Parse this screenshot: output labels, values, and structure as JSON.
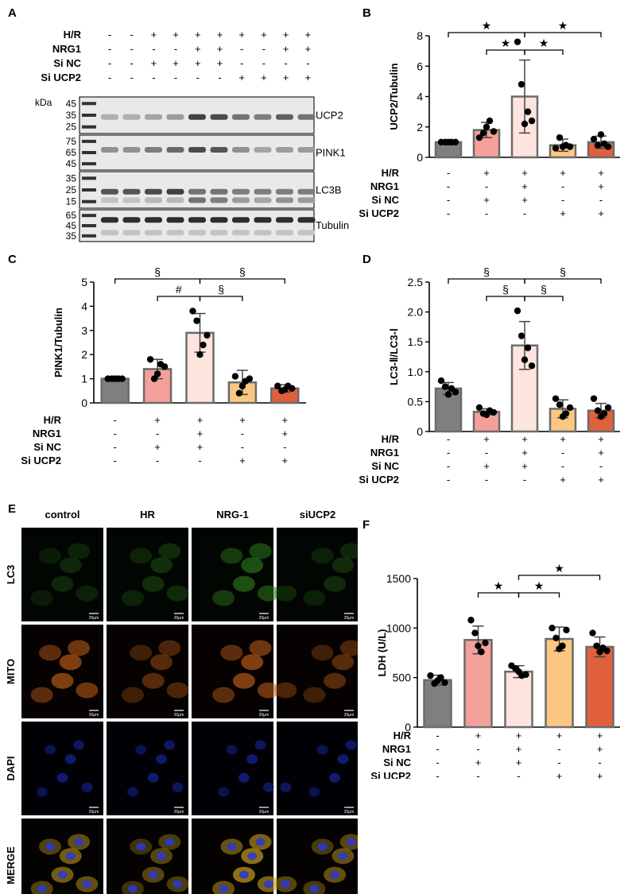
{
  "panel_labels": {
    "A": "A",
    "B": "B",
    "C": "C",
    "D": "D",
    "E": "E",
    "F": "F"
  },
  "conditions": [
    {
      "label": "H/R",
      "bar_values": [
        "-",
        "+",
        "+",
        "+",
        "+"
      ]
    },
    {
      "label": "NRG1",
      "bar_values": [
        "-",
        "-",
        "+",
        "-",
        "+"
      ]
    },
    {
      "label": "Si NC",
      "bar_values": [
        "-",
        "+",
        "+",
        "-",
        "-"
      ]
    },
    {
      "label": "Si UCP2",
      "bar_values": [
        "-",
        "-",
        "-",
        "+",
        "+"
      ]
    }
  ],
  "colors": {
    "bars": [
      "#7f7f7f",
      "#f4a09a",
      "#fde4dc",
      "#fbc782",
      "#e0603c"
    ],
    "bar_edge": "#6b6b6b"
  },
  "western_blot": {
    "lane_conditions": [
      {
        "label": "H/R",
        "lanes": [
          "-",
          "-",
          "+",
          "+",
          "+",
          "+",
          "+",
          "+",
          "+",
          "+"
        ]
      },
      {
        "label": "NRG1",
        "lanes": [
          "-",
          "-",
          "-",
          "-",
          "+",
          "+",
          "-",
          "-",
          "+",
          "+"
        ]
      },
      {
        "label": "Si NC",
        "lanes": [
          "-",
          "-",
          "+",
          "+",
          "+",
          "+",
          "-",
          "-",
          "-",
          "-"
        ]
      },
      {
        "label": "Si UCP2",
        "lanes": [
          "-",
          "-",
          "-",
          "-",
          "-",
          "-",
          "+",
          "+",
          "+",
          "+"
        ]
      }
    ],
    "kda_header": "kDa",
    "blots": [
      {
        "name": "UCP2",
        "markers": [
          "45",
          "35",
          "25"
        ]
      },
      {
        "name": "PINK1",
        "markers": [
          "75",
          "65",
          "45"
        ]
      },
      {
        "name": "LC3B",
        "markers": [
          "35",
          "25",
          "15"
        ]
      },
      {
        "name": "Tubulin",
        "markers": [
          "65",
          "45",
          "35"
        ]
      }
    ]
  },
  "microscopy": {
    "columns": [
      "control",
      "HR",
      "NRG-1",
      "siUCP2"
    ],
    "rows": [
      "LC3",
      "MITO",
      "DAPI",
      "MERGE"
    ],
    "scale_bar": "20μm"
  },
  "chart_data": [
    {
      "id": "B",
      "type": "bar",
      "ylabel": "UCP2/Tubulin",
      "ylim": [
        0,
        8
      ],
      "yticks": [
        0,
        2,
        4,
        6,
        8
      ],
      "values": [
        1.0,
        1.8,
        4.0,
        0.8,
        1.0
      ],
      "errors": [
        0.0,
        0.5,
        2.4,
        0.4,
        0.4
      ],
      "points": [
        [
          1,
          1,
          1,
          1,
          1
        ],
        [
          1.3,
          1.6,
          2.0,
          2.4,
          1.7
        ],
        [
          7.6,
          4.8,
          2.2,
          3.0,
          2.4
        ],
        [
          0.6,
          1.3,
          0.7,
          0.8,
          0.7
        ],
        [
          1.2,
          0.8,
          1.5,
          0.9,
          0.7
        ]
      ],
      "brackets": [
        {
          "from": 0,
          "to": 2,
          "label": "★",
          "level": 0
        },
        {
          "from": 2,
          "to": 4,
          "label": "★",
          "level": 0
        },
        {
          "from": 1,
          "to": 2,
          "label": "★",
          "level": 1
        },
        {
          "from": 2,
          "to": 3,
          "label": "★",
          "level": 1
        }
      ]
    },
    {
      "id": "C",
      "type": "bar",
      "ylabel": "PINK1/Tubulin",
      "ylim": [
        0,
        5
      ],
      "yticks": [
        0,
        1,
        2,
        3,
        4,
        5
      ],
      "values": [
        1.0,
        1.4,
        2.9,
        0.85,
        0.6
      ],
      "errors": [
        0.0,
        0.4,
        0.8,
        0.5,
        0.15
      ],
      "points": [
        [
          1,
          1,
          1,
          1,
          1
        ],
        [
          1.8,
          1.0,
          1.2,
          1.6,
          1.5
        ],
        [
          3.8,
          3.4,
          2.0,
          2.4,
          2.8
        ],
        [
          1.1,
          0.4,
          0.7,
          0.9,
          1.0
        ],
        [
          0.7,
          0.5,
          0.55,
          0.7,
          0.6
        ]
      ],
      "brackets": [
        {
          "from": 0,
          "to": 2,
          "label": "§",
          "level": 0
        },
        {
          "from": 2,
          "to": 4,
          "label": "§",
          "level": 0
        },
        {
          "from": 1,
          "to": 2,
          "label": "#",
          "level": 1
        },
        {
          "from": 2,
          "to": 3,
          "label": "§",
          "level": 1
        }
      ]
    },
    {
      "id": "D",
      "type": "bar",
      "ylabel": "LC3-Ⅱ/LC3-Ⅰ",
      "ylim": [
        0,
        2.5
      ],
      "yticks": [
        "0",
        "0.5",
        "1.0",
        "1.5",
        "2.0",
        "2.5"
      ],
      "values": [
        0.72,
        0.33,
        1.44,
        0.38,
        0.35
      ],
      "errors": [
        0.1,
        0.05,
        0.4,
        0.15,
        0.12
      ],
      "points": [
        [
          0.85,
          0.75,
          0.62,
          0.72,
          0.66
        ],
        [
          0.4,
          0.3,
          0.28,
          0.35,
          0.32
        ],
        [
          2.02,
          1.6,
          1.2,
          1.4,
          1.1
        ],
        [
          0.55,
          0.45,
          0.25,
          0.3,
          0.4
        ],
        [
          0.55,
          0.35,
          0.25,
          0.3,
          0.4
        ]
      ],
      "brackets": [
        {
          "from": 0,
          "to": 2,
          "label": "§",
          "level": 0
        },
        {
          "from": 2,
          "to": 4,
          "label": "§",
          "level": 0
        },
        {
          "from": 1,
          "to": 2,
          "label": "§",
          "level": 1
        },
        {
          "from": 2,
          "to": 3,
          "label": "§",
          "level": 1
        }
      ]
    },
    {
      "id": "F",
      "type": "bar",
      "ylabel": "LDH (U/L)",
      "ylim": [
        0,
        1500
      ],
      "yticks": [
        0,
        500,
        1000,
        1500
      ],
      "values": [
        475,
        880,
        560,
        890,
        810
      ],
      "errors": [
        50,
        140,
        60,
        120,
        100
      ],
      "points": [
        [
          520,
          440,
          470,
          500,
          450
        ],
        [
          1080,
          950,
          820,
          760,
          850
        ],
        [
          620,
          590,
          560,
          520,
          530
        ],
        [
          1000,
          900,
          790,
          820,
          980
        ],
        [
          950,
          820,
          760,
          800,
          770
        ]
      ],
      "brackets": [
        {
          "from": 2,
          "to": 4,
          "label": "★",
          "level": 0
        },
        {
          "from": 1,
          "to": 2,
          "label": "★",
          "level": 1
        },
        {
          "from": 2,
          "to": 3,
          "label": "★",
          "level": 1
        }
      ]
    }
  ]
}
